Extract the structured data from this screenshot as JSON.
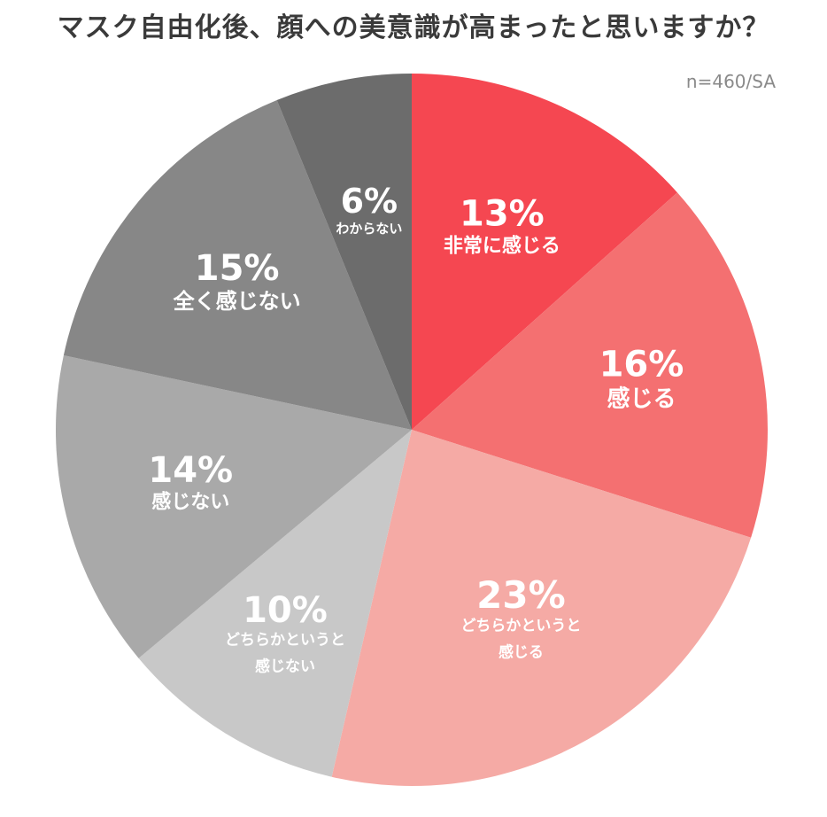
{
  "title": "マスク自由化後、顔への美意識が高まったと思いますか？",
  "note": "n=460/SA",
  "chart_data": {
    "type": "pie",
    "slices": [
      {
        "percent": 13,
        "percent_label": "13%",
        "label_lines": [
          "非常に感じる"
        ],
        "color": "#f54751"
      },
      {
        "percent": 16,
        "percent_label": "16%",
        "label_lines": [
          "感じる"
        ],
        "color": "#f47071"
      },
      {
        "percent": 23,
        "percent_label": "23%",
        "label_lines": [
          "どちらかというと",
          "感じる"
        ],
        "color": "#f5aaa5"
      },
      {
        "percent": 10,
        "percent_label": "10%",
        "label_lines": [
          "どちらかというと",
          "感じない"
        ],
        "color": "#c8c8c8"
      },
      {
        "percent": 14,
        "percent_label": "14%",
        "label_lines": [
          "感じない"
        ],
        "color": "#a9a9a9"
      },
      {
        "percent": 15,
        "percent_label": "15%",
        "label_lines": [
          "全く感じない"
        ],
        "color": "#878787"
      },
      {
        "percent": 6,
        "percent_label": "6%",
        "label_lines": [
          "わからない"
        ],
        "color": "#6c6c6c"
      }
    ]
  }
}
